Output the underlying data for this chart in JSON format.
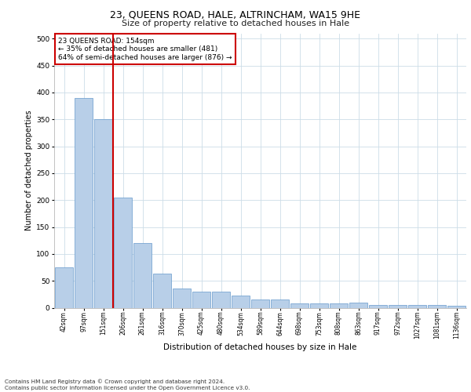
{
  "title1": "23, QUEENS ROAD, HALE, ALTRINCHAM, WA15 9HE",
  "title2": "Size of property relative to detached houses in Hale",
  "xlabel": "Distribution of detached houses by size in Hale",
  "ylabel": "Number of detached properties",
  "footnote": "Contains HM Land Registry data © Crown copyright and database right 2024.\nContains public sector information licensed under the Open Government Licence v3.0.",
  "annotation_title": "23 QUEENS ROAD: 154sqm",
  "annotation_line1": "← 35% of detached houses are smaller (481)",
  "annotation_line2": "64% of semi-detached houses are larger (876) →",
  "categories": [
    "42sqm",
    "97sqm",
    "151sqm",
    "206sqm",
    "261sqm",
    "316sqm",
    "370sqm",
    "425sqm",
    "480sqm",
    "534sqm",
    "589sqm",
    "644sqm",
    "698sqm",
    "753sqm",
    "808sqm",
    "863sqm",
    "917sqm",
    "972sqm",
    "1027sqm",
    "1081sqm",
    "1136sqm"
  ],
  "values": [
    75,
    390,
    350,
    205,
    120,
    63,
    35,
    30,
    30,
    22,
    15,
    15,
    8,
    8,
    8,
    10,
    5,
    5,
    5,
    5,
    3
  ],
  "bar_color": "#b8cfe8",
  "bar_edge_color": "#6699cc",
  "vline_color": "#cc0000",
  "vline_position": 2.5,
  "annotation_box_color": "#cc0000",
  "background_color": "#ffffff",
  "grid_color": "#ccdde8",
  "ylim": [
    0,
    510
  ],
  "yticks": [
    0,
    50,
    100,
    150,
    200,
    250,
    300,
    350,
    400,
    450,
    500
  ]
}
